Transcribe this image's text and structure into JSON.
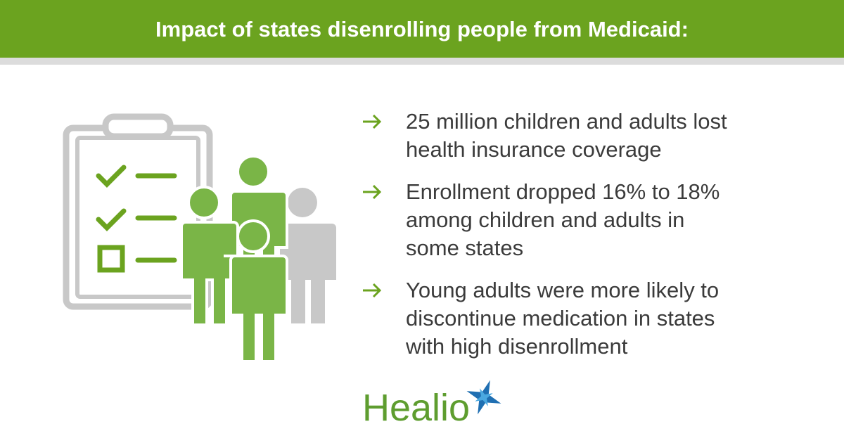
{
  "header": {
    "title": "Impact of states disenrolling people from Medicaid:"
  },
  "bullets": [
    {
      "lines": [
        "25 million children and adults lost",
        "health insurance coverage"
      ]
    },
    {
      "lines": [
        "Enrollment dropped 16% to 18%",
        "among children and adults in",
        "some states"
      ]
    },
    {
      "lines": [
        "Young adults were more likely to",
        "discontinue medication in states",
        "with high disenrollment"
      ]
    }
  ],
  "logo": {
    "text": "Healio"
  }
}
